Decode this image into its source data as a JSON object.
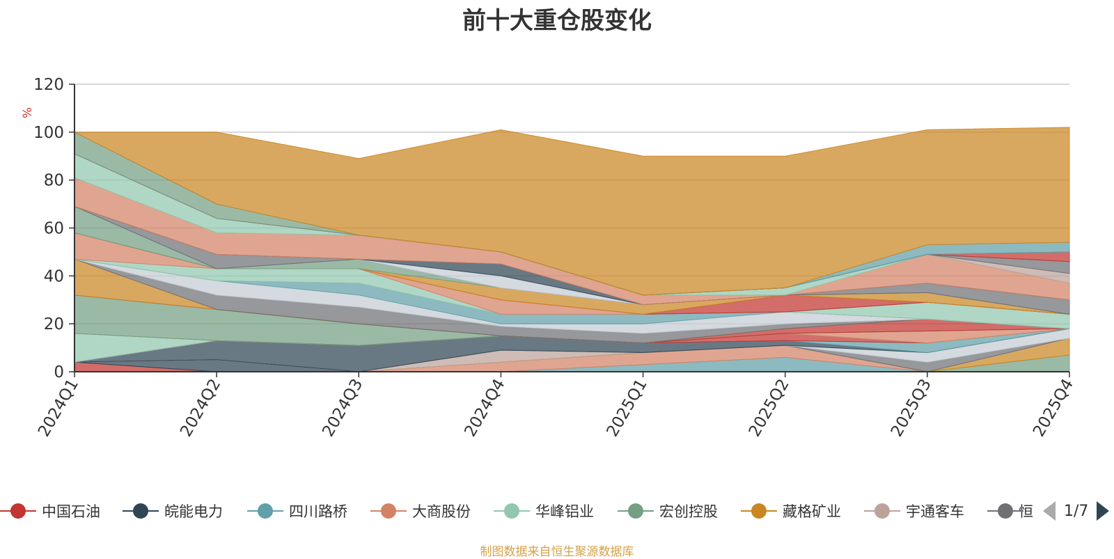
{
  "chart_data": {
    "type": "area",
    "title": "前十大重仓股变化",
    "ylabel": "%",
    "xlabel": "",
    "ylim": [
      0,
      120
    ],
    "yticks": [
      0,
      20,
      40,
      60,
      80,
      100,
      120
    ],
    "grid": true,
    "stacked": true,
    "categories": [
      "2024Q1",
      "2024Q2",
      "2024Q3",
      "2024Q4",
      "2025Q1",
      "2025Q2",
      "2025Q3",
      "2025Q4"
    ],
    "series": [
      {
        "color": "#c23531",
        "values": [
          4,
          0,
          0,
          0,
          0,
          0,
          0,
          0
        ]
      },
      {
        "color": "#2f4554",
        "values": [
          0,
          5,
          0,
          0,
          0,
          0,
          0,
          0
        ]
      },
      {
        "color": "#61a0a8",
        "values": [
          0,
          0,
          0,
          0,
          3,
          6,
          0,
          0
        ]
      },
      {
        "color": "#d48265",
        "values": [
          0,
          0,
          0,
          4,
          5,
          5,
          0,
          0
        ]
      },
      {
        "color": "#91c7ae",
        "values": [
          0,
          0,
          0,
          0,
          0,
          0,
          0,
          0
        ]
      },
      {
        "color": "#749f83",
        "values": [
          0,
          0,
          0,
          0,
          0,
          0,
          0,
          7
        ]
      },
      {
        "color": "#ca8622",
        "values": [
          0,
          0,
          0,
          0,
          0,
          0,
          0,
          7
        ]
      },
      {
        "color": "#bda29a",
        "values": [
          0,
          0,
          0,
          5,
          0,
          0,
          0,
          0
        ]
      },
      {
        "color": "#6e7074",
        "values": [
          0,
          0,
          0,
          0,
          0,
          0,
          4,
          0
        ]
      },
      {
        "color": "#c4ccd3",
        "values": [
          0,
          0,
          0,
          0,
          0,
          0,
          4,
          4
        ]
      },
      {
        "color": "#2f4554",
        "values": [
          0,
          8,
          11,
          6,
          4,
          2,
          0,
          0
        ]
      },
      {
        "color": "#61a0a8",
        "values": [
          0,
          0,
          0,
          0,
          0,
          0,
          4,
          0
        ]
      },
      {
        "color": "#c23531",
        "values": [
          0,
          0,
          0,
          0,
          0,
          3,
          0,
          0
        ]
      },
      {
        "color": "#91c7ae",
        "values": [
          12,
          0,
          0,
          0,
          0,
          0,
          0,
          0
        ]
      },
      {
        "color": "#d48265",
        "values": [
          0,
          0,
          0,
          0,
          0,
          0,
          5,
          0
        ]
      },
      {
        "color": "#749f83",
        "values": [
          16,
          13,
          9,
          0,
          0,
          0,
          0,
          0
        ]
      },
      {
        "color": "#c23531",
        "values": [
          0,
          0,
          0,
          0,
          0,
          2,
          5,
          0
        ]
      },
      {
        "color": "#ca8622",
        "values": [
          15,
          0,
          0,
          0,
          0,
          0,
          0,
          0
        ]
      },
      {
        "color": "#6e7074",
        "values": [
          0,
          6,
          7,
          4,
          4,
          2,
          0,
          0
        ]
      },
      {
        "color": "#2f4554",
        "values": [
          0,
          0,
          0,
          0,
          0,
          0,
          0,
          0
        ]
      },
      {
        "color": "#c4ccd3",
        "values": [
          0,
          6,
          5,
          1,
          4,
          5,
          0,
          0
        ]
      },
      {
        "color": "#61a0a8",
        "values": [
          0,
          0,
          5,
          4,
          4,
          0,
          0,
          0
        ]
      },
      {
        "color": "#91c7ae",
        "values": [
          0,
          5,
          6,
          0,
          0,
          0,
          7,
          6
        ]
      },
      {
        "color": "#d48265",
        "values": [
          11,
          0,
          0,
          6,
          0,
          0,
          0,
          0
        ]
      },
      {
        "color": "#c23531",
        "values": [
          0,
          0,
          0,
          0,
          0,
          7,
          0,
          0
        ]
      },
      {
        "color": "#ca8622",
        "values": [
          0,
          0,
          0,
          5,
          4,
          0,
          4,
          0
        ]
      },
      {
        "color": "#749f83",
        "values": [
          11,
          0,
          4,
          0,
          0,
          0,
          0,
          0
        ]
      },
      {
        "color": "#6e7074",
        "values": [
          0,
          6,
          0,
          0,
          0,
          0,
          4,
          6
        ]
      },
      {
        "color": "#c4ccd3",
        "values": [
          0,
          0,
          0,
          5,
          0,
          0,
          0,
          0
        ]
      },
      {
        "color": "#2f4554",
        "values": [
          0,
          0,
          0,
          5,
          0,
          0,
          0,
          0
        ]
      },
      {
        "color": "#d48265",
        "values": [
          12,
          9,
          10,
          5,
          4,
          0,
          12,
          7
        ]
      },
      {
        "color": "#91c7ae",
        "values": [
          10,
          6,
          0,
          0,
          0,
          3,
          0,
          0
        ]
      },
      {
        "color": "#bda29a",
        "values": [
          0,
          0,
          0,
          0,
          0,
          0,
          0,
          4
        ]
      },
      {
        "color": "#6e7074",
        "values": [
          0,
          0,
          0,
          0,
          0,
          0,
          0,
          5
        ]
      },
      {
        "color": "#c23531",
        "values": [
          0,
          0,
          0,
          0,
          0,
          0,
          0,
          4
        ]
      },
      {
        "color": "#749f83",
        "values": [
          9,
          6,
          0,
          0,
          0,
          0,
          0,
          0
        ]
      },
      {
        "color": "#61a0a8",
        "values": [
          0,
          0,
          0,
          0,
          0,
          0,
          4,
          4
        ]
      },
      {
        "color": "#ca8622",
        "values": [
          0,
          30,
          32,
          51,
          58,
          55,
          48,
          48
        ]
      }
    ]
  },
  "legend": {
    "items": [
      {
        "label": "中国石油",
        "color": "#c23531",
        "icon": "circle-marker"
      },
      {
        "label": "皖能电力",
        "color": "#2f4554",
        "icon": "circle-marker"
      },
      {
        "label": "四川路桥",
        "color": "#61a0a8",
        "icon": "circle-marker"
      },
      {
        "label": "大商股份",
        "color": "#d48265",
        "icon": "circle-marker"
      },
      {
        "label": "华峰铝业",
        "color": "#91c7ae",
        "icon": "circle-marker"
      },
      {
        "label": "宏创控股",
        "color": "#749f83",
        "icon": "circle-marker"
      },
      {
        "label": "藏格矿业",
        "color": "#ca8622",
        "icon": "circle-marker"
      },
      {
        "label": "宇通客车",
        "color": "#bda29a",
        "icon": "circle-marker"
      },
      {
        "label": "恒",
        "color": "#6e7074",
        "icon": "circle-marker"
      }
    ],
    "page": "1/7"
  },
  "footer": {
    "note": "制图数据来自恒生聚源数据库"
  },
  "colors": {
    "axis": "#333333",
    "grid": "#cccccc",
    "unit": "#e03030",
    "footer": "#d4a24a"
  }
}
